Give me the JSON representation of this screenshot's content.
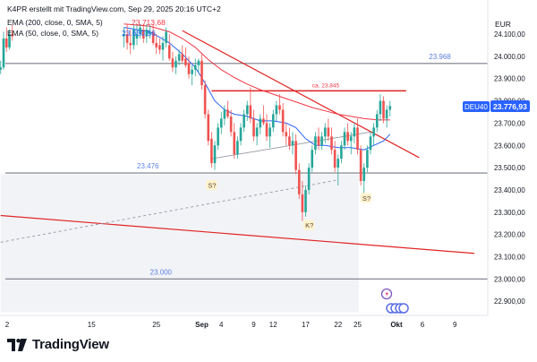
{
  "header": {
    "created_by": "K4PR erstellt mit TradingView.com, Sep 29, 2025 20:16 UTC+2",
    "ema200_label": "EMA (200, close, 0, SMA, 5)",
    "ema200_value": "23.713,68",
    "ema50_label": "EMA (50, close, 0, SMA, 5)",
    "ema50_value": "23.650,56"
  },
  "currency": "EUR",
  "symbol_badge": "DEU40",
  "last_price": "23.776,93",
  "brand": "TradingView",
  "colors": {
    "up": "#26a69a",
    "down": "#ef5350",
    "ema50": "#2962ff",
    "ema200": "#f23645",
    "trendline": "#e02424",
    "level": "#787b86",
    "label_blue": "#5b7fe0"
  },
  "chart_data": {
    "type": "candlestick",
    "y_axis": {
      "min": 22850,
      "max": 24150,
      "ticks": [
        "24.100,00",
        "24.000,00",
        "23.900,00",
        "23.800,00",
        "23.700,00",
        "23.600,00",
        "23.500,00",
        "23.400,00",
        "23.300,00",
        "23.200,00",
        "23.100,00",
        "23.000,00",
        "22.900,00"
      ],
      "tick_values": [
        24100,
        24000,
        23900,
        23800,
        23700,
        23600,
        23500,
        23400,
        23300,
        23200,
        23100,
        23000,
        22900
      ]
    },
    "x_axis": {
      "ticks": [
        "2",
        "15",
        "25",
        "Sep",
        "4",
        "9",
        "12",
        "17",
        "22",
        "25",
        "Okt",
        "6",
        "9"
      ],
      "tick_days": [
        2,
        15,
        25,
        32,
        35,
        40,
        43,
        48,
        53,
        56,
        62,
        66,
        71
      ],
      "start_day": 1,
      "end_day": 73
    },
    "horizontal_levels": [
      {
        "value": 23968,
        "label": "23.968"
      },
      {
        "value": 23476,
        "label": "23.476"
      },
      {
        "value": 23000,
        "label": "23.000"
      }
    ],
    "resistance": {
      "value": 23845,
      "label": "ca. 23.845",
      "from_day": 33.5,
      "to_day": 63.5
    },
    "annotations": [
      {
        "text": "S?",
        "day": 33.5,
        "value": 23420
      },
      {
        "text": "K?",
        "day": 48.5,
        "value": 23240
      },
      {
        "text": "S?",
        "day": 57.3,
        "value": 23362
      }
    ],
    "trendlines": [
      {
        "from": [
          1,
          23285
        ],
        "to": [
          74,
          23115
        ]
      },
      {
        "from": [
          29,
          24115
        ],
        "to": [
          65.5,
          23545
        ]
      }
    ],
    "support_line": {
      "from": [
        33.5,
        23540
      ],
      "to": [
        58,
        23660
      ]
    },
    "dashed_line": {
      "from": [
        1,
        23165
      ],
      "to": [
        53,
        23445
      ]
    },
    "shaded_zone": {
      "from_day": 1,
      "to_day": 56.2,
      "low": 22850,
      "high": 23470
    },
    "candles": [
      [
        1,
        23940,
        23980,
        23920,
        23950
      ],
      [
        1.45,
        23950,
        24110,
        23940,
        24080
      ],
      [
        1.9,
        24080,
        24130,
        24020,
        24040
      ],
      [
        2.35,
        24040,
        24120,
        24030,
        24100
      ],
      [
        2.8,
        24100,
        24140,
        24070,
        24090
      ],
      [
        20,
        24090,
        24130,
        24040,
        24100
      ],
      [
        20.5,
        24100,
        24145,
        24030,
        24060
      ],
      [
        21,
        24060,
        24120,
        24010,
        24050
      ],
      [
        21.5,
        24050,
        24140,
        24030,
        24120
      ],
      [
        22,
        24080,
        24140,
        24050,
        24100
      ],
      [
        22.5,
        24100,
        24145,
        24080,
        24130
      ],
      [
        23,
        24120,
        24145,
        24060,
        24080
      ],
      [
        23.5,
        24090,
        24145,
        24060,
        24120
      ],
      [
        24,
        24100,
        24140,
        24080,
        24110
      ],
      [
        24.5,
        24110,
        24145,
        24050,
        24060
      ],
      [
        25,
        24060,
        24100,
        24010,
        24040
      ],
      [
        25.5,
        24050,
        24080,
        24010,
        24030
      ],
      [
        26,
        24030,
        24090,
        23980,
        24060
      ],
      [
        26.5,
        24060,
        24130,
        24040,
        24110
      ],
      [
        27,
        24050,
        24100,
        23980,
        23990
      ],
      [
        27.5,
        23990,
        24020,
        23930,
        23950
      ],
      [
        28,
        23950,
        24000,
        23920,
        23980
      ],
      [
        28.5,
        23980,
        24030,
        23960,
        24010
      ],
      [
        29,
        24010,
        24050,
        23970,
        23980
      ],
      [
        29.5,
        23990,
        24040,
        23950,
        23960
      ],
      [
        30,
        23970,
        24000,
        23900,
        23920
      ],
      [
        30.5,
        23920,
        23960,
        23870,
        23940
      ],
      [
        31,
        23940,
        23990,
        23910,
        23960
      ],
      [
        31.5,
        23960,
        23990,
        23930,
        23980
      ],
      [
        32,
        23980,
        24010,
        23850,
        23870
      ],
      [
        32.5,
        23870,
        23890,
        23720,
        23740
      ],
      [
        33,
        23740,
        23760,
        23600,
        23620
      ],
      [
        33.5,
        23630,
        23660,
        23500,
        23520
      ],
      [
        34,
        23520,
        23620,
        23490,
        23600
      ],
      [
        34.5,
        23600,
        23700,
        23580,
        23680
      ],
      [
        35,
        23680,
        23750,
        23650,
        23720
      ],
      [
        35.5,
        23720,
        23780,
        23690,
        23760
      ],
      [
        36,
        23760,
        23800,
        23720,
        23730
      ],
      [
        36.5,
        23730,
        23760,
        23640,
        23660
      ],
      [
        37,
        23660,
        23700,
        23540,
        23560
      ],
      [
        37.5,
        23560,
        23640,
        23540,
        23620
      ],
      [
        38,
        23620,
        23700,
        23600,
        23680
      ],
      [
        38.5,
        23680,
        23760,
        23660,
        23740
      ],
      [
        39,
        23740,
        23800,
        23710,
        23780
      ],
      [
        39.5,
        23780,
        23860,
        23700,
        23720
      ],
      [
        40,
        23720,
        23760,
        23620,
        23640
      ],
      [
        40.5,
        23640,
        23700,
        23600,
        23680
      ],
      [
        41,
        23680,
        23740,
        23650,
        23720
      ],
      [
        41.5,
        23720,
        23780,
        23690,
        23700
      ],
      [
        42,
        23700,
        23740,
        23620,
        23640
      ],
      [
        42.5,
        23640,
        23700,
        23590,
        23680
      ],
      [
        43,
        23680,
        23760,
        23660,
        23740
      ],
      [
        43.5,
        23740,
        23800,
        23710,
        23780
      ],
      [
        44,
        23780,
        23830,
        23740,
        23760
      ],
      [
        44.5,
        23760,
        23790,
        23640,
        23660
      ],
      [
        45,
        23660,
        23700,
        23600,
        23640
      ],
      [
        45.5,
        23640,
        23680,
        23580,
        23600
      ],
      [
        46,
        23600,
        23660,
        23560,
        23620
      ],
      [
        46.5,
        23620,
        23650,
        23470,
        23490
      ],
      [
        47,
        23490,
        23520,
        23360,
        23380
      ],
      [
        47.5,
        23380,
        23440,
        23260,
        23300
      ],
      [
        48,
        23300,
        23420,
        23280,
        23400
      ],
      [
        48.5,
        23400,
        23520,
        23380,
        23500
      ],
      [
        49,
        23500,
        23600,
        23480,
        23580
      ],
      [
        49.5,
        23580,
        23660,
        23560,
        23640
      ],
      [
        50,
        23640,
        23680,
        23580,
        23600
      ],
      [
        50.5,
        23600,
        23660,
        23580,
        23640
      ],
      [
        51,
        23640,
        23700,
        23610,
        23680
      ],
      [
        51.5,
        23680,
        23720,
        23620,
        23640
      ],
      [
        52,
        23640,
        23680,
        23560,
        23580
      ],
      [
        52.5,
        23580,
        23620,
        23480,
        23500
      ],
      [
        53,
        23500,
        23560,
        23420,
        23540
      ],
      [
        53.5,
        23540,
        23620,
        23520,
        23600
      ],
      [
        54,
        23600,
        23680,
        23580,
        23660
      ],
      [
        54.5,
        23660,
        23700,
        23600,
        23620
      ],
      [
        55,
        23620,
        23660,
        23560,
        23640
      ],
      [
        55.5,
        23640,
        23700,
        23610,
        23680
      ],
      [
        56,
        23680,
        23720,
        23560,
        23580
      ],
      [
        56.5,
        23580,
        23600,
        23420,
        23440
      ],
      [
        57,
        23440,
        23520,
        23370,
        23500
      ],
      [
        57.5,
        23500,
        23600,
        23480,
        23580
      ],
      [
        58,
        23580,
        23660,
        23560,
        23640
      ],
      [
        58.5,
        23640,
        23700,
        23600,
        23680
      ],
      [
        59,
        23680,
        23760,
        23660,
        23740
      ],
      [
        59.5,
        23740,
        23830,
        23710,
        23800
      ],
      [
        60,
        23800,
        23820,
        23700,
        23720
      ],
      [
        60.5,
        23720,
        23780,
        23680,
        23760
      ],
      [
        61,
        23760,
        23800,
        23730,
        23777
      ]
    ],
    "ema50": [
      [
        20,
        24130
      ],
      [
        24,
        24110
      ],
      [
        27,
        24060
      ],
      [
        29,
        24010
      ],
      [
        31,
        23950
      ],
      [
        32.5,
        23880
      ],
      [
        34,
        23800
      ],
      [
        35.5,
        23760
      ],
      [
        37,
        23740
      ],
      [
        39,
        23730
      ],
      [
        41,
        23710
      ],
      [
        43,
        23710
      ],
      [
        45,
        23700
      ],
      [
        46.5,
        23680
      ],
      [
        48,
        23630
      ],
      [
        49.5,
        23600
      ],
      [
        51,
        23600
      ],
      [
        53,
        23590
      ],
      [
        55,
        23590
      ],
      [
        57,
        23580
      ],
      [
        58.5,
        23600
      ],
      [
        60,
        23620
      ],
      [
        61,
        23650
      ]
    ],
    "ema200": [
      [
        20,
        24145
      ],
      [
        24,
        24135
      ],
      [
        27,
        24110
      ],
      [
        29,
        24080
      ],
      [
        31,
        24040
      ],
      [
        33,
        23985
      ],
      [
        35,
        23940
      ],
      [
        37,
        23905
      ],
      [
        39,
        23875
      ],
      [
        41,
        23850
      ],
      [
        43,
        23830
      ],
      [
        45,
        23810
      ],
      [
        47,
        23790
      ],
      [
        49,
        23770
      ],
      [
        51,
        23755
      ],
      [
        53,
        23740
      ],
      [
        55,
        23730
      ],
      [
        57,
        23720
      ],
      [
        59,
        23715
      ],
      [
        61,
        23714
      ]
    ]
  }
}
